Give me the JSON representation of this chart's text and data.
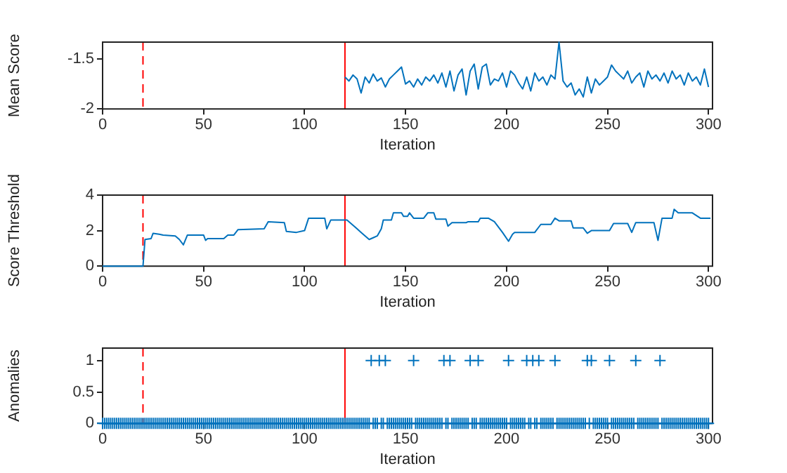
{
  "chart_data": [
    {
      "type": "line",
      "xlabel": "Iteration",
      "ylabel": "Mean Score",
      "xlim": [
        0,
        302
      ],
      "xticks": [
        0,
        50,
        100,
        150,
        200,
        250,
        300
      ],
      "ylim": [
        -2,
        -1.33
      ],
      "yticks": [
        -2,
        -1.5
      ],
      "grid": false,
      "legend": false,
      "marker": "none",
      "series": [
        {
          "color": "#0072bd",
          "x": [
            120,
            122,
            124,
            126,
            128,
            130,
            132,
            134,
            136,
            138,
            140,
            142,
            144,
            146,
            148,
            150,
            152,
            154,
            156,
            158,
            160,
            162,
            164,
            166,
            168,
            170,
            172,
            174,
            176,
            178,
            180,
            182,
            184,
            186,
            188,
            190,
            192,
            194,
            196,
            198,
            200,
            202,
            204,
            206,
            208,
            210,
            212,
            214,
            216,
            218,
            220,
            222,
            224,
            226,
            228,
            230,
            232,
            234,
            236,
            238,
            240,
            242,
            244,
            246,
            248,
            250,
            252,
            254,
            256,
            258,
            260,
            262,
            264,
            266,
            268,
            270,
            272,
            274,
            276,
            278,
            280,
            282,
            284,
            286,
            288,
            290,
            292,
            294,
            296,
            298,
            300
          ],
          "values": [
            -1.68,
            -1.72,
            -1.66,
            -1.7,
            -1.84,
            -1.68,
            -1.74,
            -1.65,
            -1.72,
            -1.69,
            -1.78,
            -1.7,
            -1.66,
            -1.62,
            -1.58,
            -1.75,
            -1.72,
            -1.78,
            -1.7,
            -1.76,
            -1.68,
            -1.72,
            -1.66,
            -1.74,
            -1.64,
            -1.78,
            -1.62,
            -1.82,
            -1.66,
            -1.6,
            -1.86,
            -1.62,
            -1.55,
            -1.8,
            -1.58,
            -1.55,
            -1.76,
            -1.7,
            -1.72,
            -1.64,
            -1.78,
            -1.62,
            -1.66,
            -1.74,
            -1.8,
            -1.68,
            -1.82,
            -1.64,
            -1.72,
            -1.68,
            -1.76,
            -1.66,
            -1.7,
            -1.33,
            -1.72,
            -1.78,
            -1.74,
            -1.86,
            -1.8,
            -1.88,
            -1.68,
            -1.84,
            -1.7,
            -1.76,
            -1.72,
            -1.68,
            -1.56,
            -1.62,
            -1.66,
            -1.7,
            -1.62,
            -1.74,
            -1.68,
            -1.64,
            -1.78,
            -1.62,
            -1.7,
            -1.66,
            -1.72,
            -1.64,
            -1.74,
            -1.62,
            -1.7,
            -1.66,
            -1.76,
            -1.64,
            -1.72,
            -1.68,
            -1.76,
            -1.6,
            -1.78
          ]
        }
      ],
      "ref_lines": [
        {
          "axis": "x",
          "value": 20,
          "color": "#ff0000",
          "line_style": "dashed"
        },
        {
          "axis": "x",
          "value": 120,
          "color": "#ff0000",
          "line_style": "solid"
        }
      ]
    },
    {
      "type": "line",
      "xlabel": "Iteration",
      "ylabel": "Score Threshold",
      "xlim": [
        0,
        302
      ],
      "xticks": [
        0,
        50,
        100,
        150,
        200,
        250,
        300
      ],
      "ylim": [
        0,
        4
      ],
      "yticks": [
        0,
        2,
        4
      ],
      "grid": false,
      "legend": false,
      "marker": "none",
      "series": [
        {
          "color": "#0072bd",
          "x": [
            0,
            20,
            21,
            24,
            25,
            28,
            30,
            36,
            38,
            40,
            42,
            50,
            51,
            52,
            60,
            62,
            65,
            67,
            80,
            82,
            90,
            91,
            96,
            100,
            102,
            110,
            111,
            113,
            121,
            124,
            128,
            132,
            134,
            136,
            138,
            139,
            143,
            144,
            148,
            149,
            151,
            152,
            154,
            159,
            161,
            164,
            165,
            170,
            171,
            173,
            180,
            181,
            186,
            187,
            191,
            194,
            198,
            201,
            203,
            204,
            214,
            217,
            222,
            224,
            226,
            232,
            233,
            238,
            240,
            242,
            251,
            253,
            260,
            262,
            264,
            273,
            275,
            277,
            282,
            283,
            285,
            292,
            296,
            301
          ],
          "values": [
            0,
            0,
            1.5,
            1.55,
            1.85,
            1.8,
            1.75,
            1.7,
            1.5,
            1.2,
            1.75,
            1.75,
            1.45,
            1.55,
            1.55,
            1.75,
            1.75,
            2.05,
            2.1,
            2.5,
            2.45,
            1.95,
            1.9,
            2,
            2.7,
            2.7,
            2.1,
            2.6,
            2.6,
            2.3,
            1.9,
            1.5,
            1.6,
            1.7,
            2.1,
            2.6,
            2.6,
            3,
            3,
            2.8,
            2.8,
            3,
            2.7,
            2.7,
            3,
            3,
            2.65,
            2.65,
            2.25,
            2.45,
            2.45,
            2.5,
            2.5,
            2.7,
            2.7,
            2.5,
            1.9,
            1.4,
            1.8,
            1.9,
            1.9,
            2.35,
            2.35,
            2.7,
            2.55,
            2.55,
            2.15,
            2.15,
            1.85,
            2,
            2,
            2.4,
            2.4,
            1.9,
            2.45,
            2.45,
            1.45,
            2.7,
            2.7,
            3.2,
            3,
            3,
            2.7,
            2.7
          ]
        }
      ],
      "ref_lines": [
        {
          "axis": "x",
          "value": 20,
          "color": "#ff0000",
          "line_style": "dashed"
        },
        {
          "axis": "x",
          "value": 120,
          "color": "#ff0000",
          "line_style": "solid"
        }
      ]
    },
    {
      "type": "scatter",
      "xlabel": "Iteration",
      "ylabel": "Anomalies",
      "xlim": [
        0,
        302
      ],
      "xticks": [
        0,
        50,
        100,
        150,
        200,
        250,
        300
      ],
      "ylim": [
        0,
        1.2
      ],
      "yticks": [
        0,
        0.5,
        1
      ],
      "grid": false,
      "legend": false,
      "marker": "cross",
      "series": [
        {
          "color": "#0072bd",
          "x": [
            0,
            1,
            2,
            3,
            4,
            5,
            6,
            7,
            8,
            9,
            10,
            11,
            12,
            13,
            14,
            15,
            16,
            17,
            18,
            19,
            20,
            21,
            22,
            23,
            24,
            25,
            26,
            27,
            28,
            29,
            30,
            31,
            32,
            33,
            34,
            35,
            36,
            37,
            38,
            39,
            40,
            41,
            42,
            43,
            44,
            45,
            46,
            47,
            48,
            49,
            50,
            51,
            52,
            53,
            54,
            55,
            56,
            57,
            58,
            59,
            60,
            61,
            62,
            63,
            64,
            65,
            66,
            67,
            68,
            69,
            70,
            71,
            72,
            73,
            74,
            75,
            76,
            77,
            78,
            79,
            80,
            81,
            82,
            83,
            84,
            85,
            86,
            87,
            88,
            89,
            90,
            91,
            92,
            93,
            94,
            95,
            96,
            97,
            98,
            99,
            100,
            101,
            102,
            103,
            104,
            105,
            106,
            107,
            108,
            109,
            110,
            111,
            112,
            113,
            114,
            115,
            116,
            117,
            118,
            119,
            120,
            121,
            122,
            123,
            124,
            125,
            126,
            127,
            128,
            129,
            130,
            131,
            132,
            133,
            134,
            135,
            136,
            137,
            138,
            139,
            140,
            141,
            142,
            143,
            144,
            145,
            146,
            147,
            148,
            149,
            150,
            151,
            152,
            153,
            154,
            155,
            156,
            157,
            158,
            159,
            160,
            161,
            162,
            163,
            164,
            165,
            166,
            167,
            168,
            169,
            170,
            171,
            172,
            173,
            174,
            175,
            176,
            177,
            178,
            179,
            180,
            181,
            182,
            183,
            184,
            185,
            186,
            187,
            188,
            189,
            190,
            191,
            192,
            193,
            194,
            195,
            196,
            197,
            198,
            199,
            200,
            201,
            202,
            203,
            204,
            205,
            206,
            207,
            208,
            209,
            210,
            211,
            212,
            213,
            214,
            215,
            216,
            217,
            218,
            219,
            220,
            221,
            222,
            223,
            224,
            225,
            226,
            227,
            228,
            229,
            230,
            231,
            232,
            233,
            234,
            235,
            236,
            237,
            238,
            239,
            240,
            241,
            242,
            243,
            244,
            245,
            246,
            247,
            248,
            249,
            250,
            251,
            252,
            253,
            254,
            255,
            256,
            257,
            258,
            259,
            260,
            261,
            262,
            263,
            264,
            265,
            266,
            267,
            268,
            269,
            270,
            271,
            272,
            273,
            274,
            275,
            276,
            277,
            278,
            279,
            280,
            281,
            282,
            283,
            284,
            285,
            286,
            287,
            288,
            289,
            290,
            291,
            292,
            293,
            294,
            295,
            296,
            297,
            298,
            299,
            300
          ],
          "values": [
            0,
            0,
            0,
            0,
            0,
            0,
            0,
            0,
            0,
            0,
            0,
            0,
            0,
            0,
            0,
            0,
            0,
            0,
            0,
            0,
            0,
            0,
            0,
            0,
            0,
            0,
            0,
            0,
            0,
            0,
            0,
            0,
            0,
            0,
            0,
            0,
            0,
            0,
            0,
            0,
            0,
            0,
            0,
            0,
            0,
            0,
            0,
            0,
            0,
            0,
            0,
            0,
            0,
            0,
            0,
            0,
            0,
            0,
            0,
            0,
            0,
            0,
            0,
            0,
            0,
            0,
            0,
            0,
            0,
            0,
            0,
            0,
            0,
            0,
            0,
            0,
            0,
            0,
            0,
            0,
            0,
            0,
            0,
            0,
            0,
            0,
            0,
            0,
            0,
            0,
            0,
            0,
            0,
            0,
            0,
            0,
            0,
            0,
            0,
            0,
            0,
            0,
            0,
            0,
            0,
            0,
            0,
            0,
            0,
            0,
            0,
            0,
            0,
            0,
            0,
            0,
            0,
            0,
            0,
            0,
            0,
            0,
            0,
            0,
            0,
            0,
            0,
            0,
            0,
            0,
            0,
            0,
            0,
            1,
            0,
            0,
            0,
            1,
            0,
            0,
            1,
            0,
            0,
            0,
            0,
            0,
            0,
            0,
            0,
            0,
            0,
            0,
            0,
            0,
            1,
            0,
            0,
            0,
            0,
            0,
            0,
            0,
            0,
            0,
            0,
            0,
            0,
            0,
            0,
            1,
            0,
            0,
            1,
            0,
            0,
            0,
            0,
            0,
            0,
            0,
            0,
            0,
            1,
            0,
            0,
            0,
            1,
            0,
            0,
            0,
            0,
            0,
            0,
            0,
            0,
            0,
            0,
            0,
            0,
            0,
            0,
            1,
            0,
            0,
            0,
            0,
            0,
            0,
            0,
            0,
            1,
            0,
            0,
            1,
            0,
            0,
            1,
            0,
            0,
            0,
            0,
            0,
            0,
            0,
            1,
            0,
            0,
            0,
            0,
            0,
            0,
            0,
            0,
            0,
            0,
            0,
            0,
            0,
            0,
            0,
            1,
            0,
            1,
            0,
            0,
            0,
            0,
            0,
            0,
            0,
            0,
            1,
            0,
            0,
            0,
            0,
            0,
            0,
            0,
            0,
            0,
            0,
            0,
            0,
            1,
            0,
            0,
            0,
            0,
            0,
            0,
            0,
            0,
            0,
            0,
            0,
            1,
            0,
            0,
            0,
            0,
            0,
            0,
            0,
            0,
            0,
            0,
            0,
            0,
            0,
            0,
            0,
            0,
            0,
            0,
            0,
            0,
            0,
            0,
            0,
            0
          ]
        }
      ],
      "ref_lines": [
        {
          "axis": "x",
          "value": 20,
          "color": "#ff0000",
          "line_style": "dashed"
        },
        {
          "axis": "x",
          "value": 120,
          "color": "#ff0000",
          "line_style": "solid"
        }
      ]
    }
  ]
}
